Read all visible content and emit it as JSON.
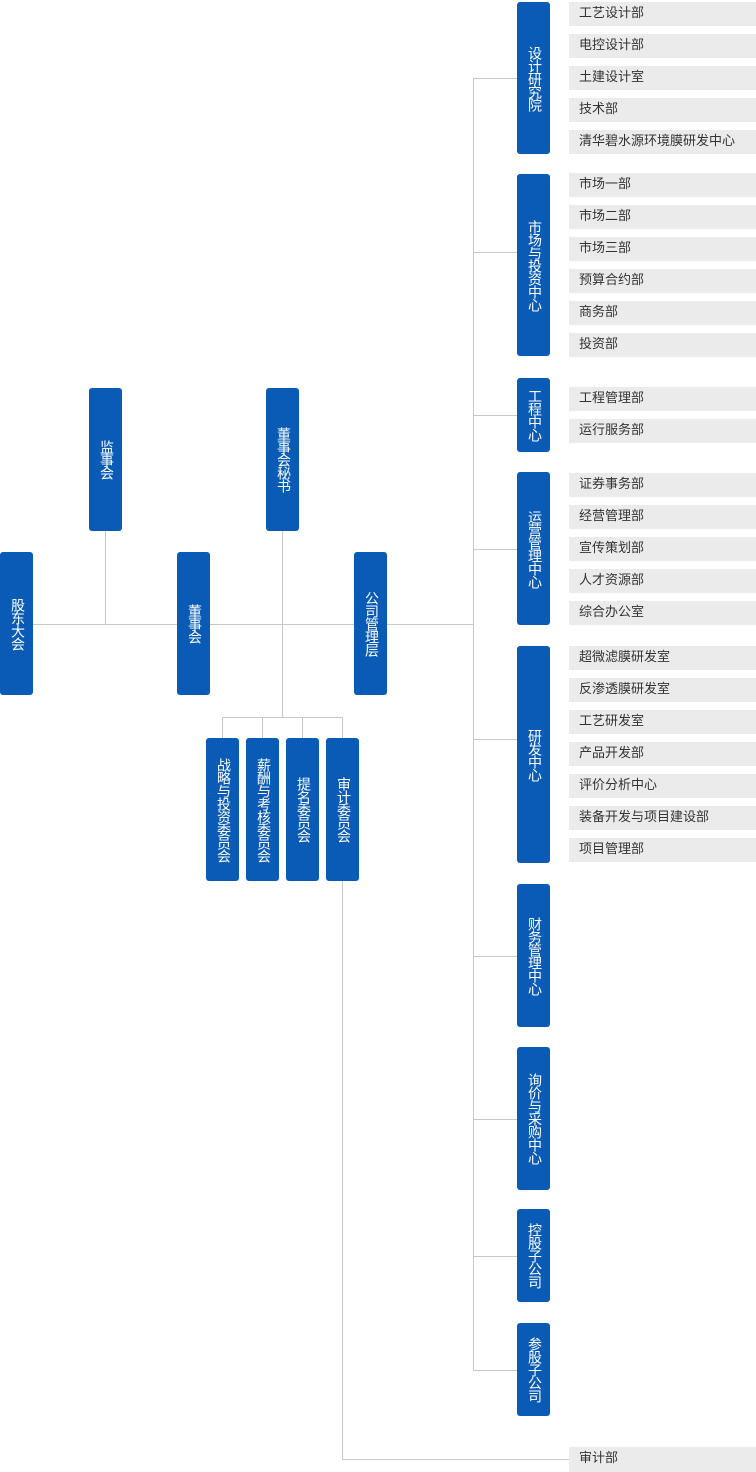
{
  "colors": {
    "box": "#0a5bb5",
    "item_bg": "#ebebeb",
    "line": "#c8c8c8"
  },
  "governance": {
    "shareholders": "股东大会",
    "supervisors": "监事会",
    "board": "董事会",
    "board_secretary": "董事会秘书",
    "management": "公司管理层"
  },
  "committees": [
    "战略与投资委员会",
    "薪酬与考核委员会",
    "提名委员会",
    "审计委员会"
  ],
  "audit_dept": "审计部",
  "divisions": [
    {
      "name": "设计研究院",
      "items": [
        "工艺设计部",
        "电控设计部",
        "土建设计室",
        "技术部",
        "清华碧水源环境膜研发中心"
      ]
    },
    {
      "name": "市场与投资中心",
      "items": [
        "市场一部",
        "市场二部",
        "市场三部",
        "预算合约部",
        "商务部",
        "投资部"
      ]
    },
    {
      "name": "工程中心",
      "items": [
        "工程管理部",
        "运行服务部"
      ]
    },
    {
      "name": "运营管理中心",
      "items": [
        "证券事务部",
        "经营管理部",
        "宣传策划部",
        "人才资源部",
        "综合办公室"
      ]
    },
    {
      "name": "研发中心",
      "items": [
        "超微滤膜研发室",
        "反渗透膜研发室",
        "工艺研发室",
        "产品开发部",
        "评价分析中心",
        "装备开发与项目建设部",
        "项目管理部"
      ]
    },
    {
      "name": "财务管理中心",
      "items": []
    },
    {
      "name": "询价与采购中心",
      "items": []
    },
    {
      "name": "控股子公司",
      "items": []
    },
    {
      "name": "参股子公司",
      "items": []
    }
  ]
}
